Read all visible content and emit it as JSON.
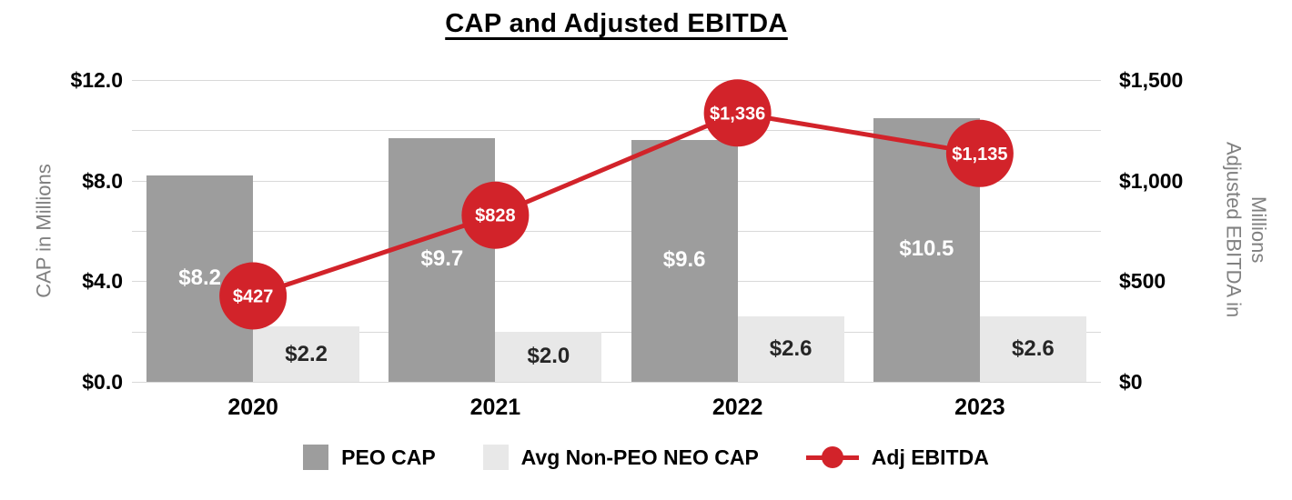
{
  "chart_data": {
    "type": "bar",
    "subtype": "combo bar+line, dual axis",
    "title": "CAP and Adjusted EBITDA",
    "categories": [
      "2020",
      "2021",
      "2022",
      "2023"
    ],
    "series": [
      {
        "name": "PEO CAP",
        "type": "bar",
        "axis": "left",
        "color": "#9d9d9d",
        "label_color": "#ffffff",
        "values": [
          8.2,
          9.7,
          9.6,
          10.5
        ],
        "labels": [
          "$8.2",
          "$9.7",
          "$9.6",
          "$10.5"
        ]
      },
      {
        "name": "Avg Non-PEO NEO CAP",
        "type": "bar",
        "axis": "left",
        "color": "#e8e8e8",
        "label_color": "#262626",
        "values": [
          2.2,
          2.0,
          2.6,
          2.6
        ],
        "labels": [
          "$2.2",
          "$2.0",
          "$2.6",
          "$2.6"
        ]
      },
      {
        "name": "Adj EBITDA",
        "type": "line",
        "axis": "right",
        "color": "#d2232a",
        "label_color": "#ffffff",
        "values": [
          427,
          828,
          1336,
          1135
        ],
        "labels": [
          "$427",
          "$828",
          "$1,336",
          "$1,135"
        ]
      }
    ],
    "left_axis": {
      "label": "CAP in Millions",
      "min": 0,
      "max": 12,
      "tick_values": [
        0,
        4,
        8,
        12
      ],
      "tick_labels": [
        "$0.0",
        "$4.0",
        "$8.0",
        "$12.0"
      ],
      "gridline_step": 2
    },
    "right_axis": {
      "label": "Adjusted EBITDA in Millions",
      "min": 0,
      "max": 1500,
      "tick_values": [
        0,
        500,
        1000,
        1500
      ],
      "tick_labels": [
        "$0",
        "$500",
        "$1,000",
        "$1,500"
      ]
    },
    "legend": {
      "position": "bottom",
      "entries": [
        "PEO CAP",
        "Avg Non-PEO NEO CAP",
        "Adj EBITDA"
      ]
    },
    "grid": true,
    "grid_color": "#d9d9d9"
  }
}
